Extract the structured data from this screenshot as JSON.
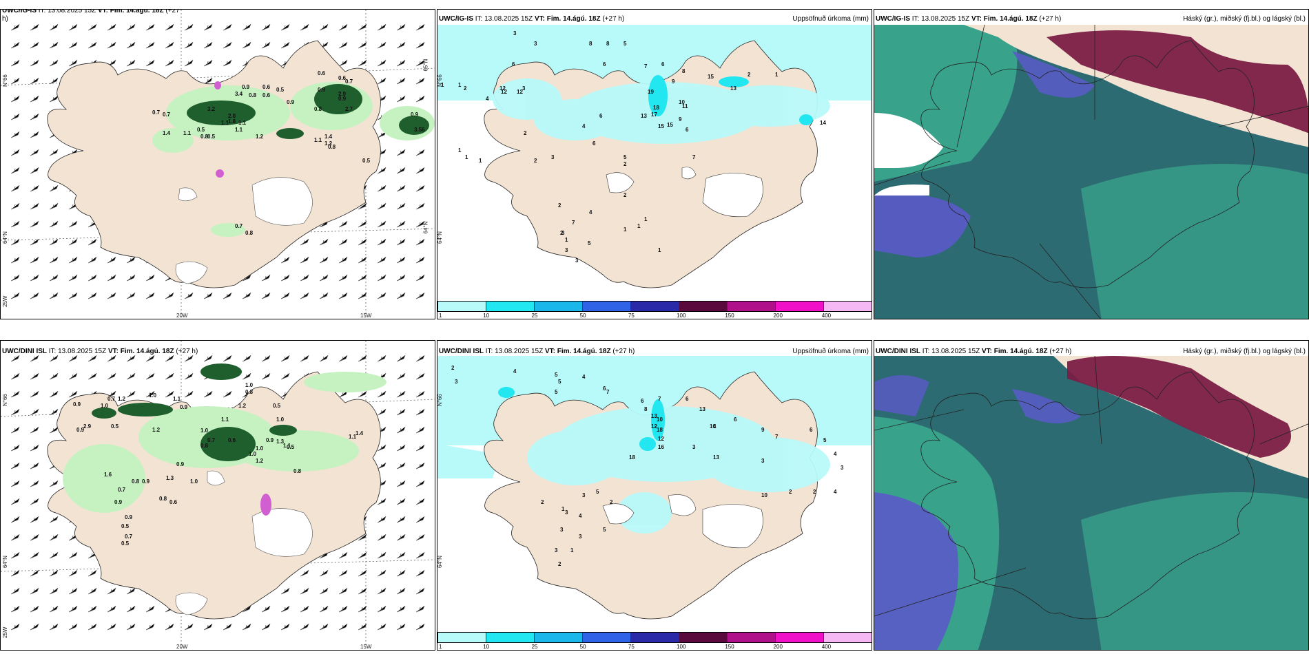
{
  "colors": {
    "land": "#f2e3d3",
    "cyan_light": "#b8fafa",
    "cyan": "#22e6f0",
    "green_light": "#c6f2c2",
    "green_dark": "#1f5f2e",
    "cloud_high": "#7a1d45",
    "cloud_mid": "#5a5ac8",
    "cloud_low": "#2d6b72",
    "cloud_teal": "#3aa88e"
  },
  "panels": {
    "top_left": {
      "model": "UWC/IG-IS",
      "it_label": "IT: 13.08.2025 15Z",
      "vt_label": "VT: Fim. 14.ágú. 18Z",
      "lead": "(+27",
      "lead_wrap": "h)",
      "axis_lat_top": "N°66",
      "axis_lat_mid": "64°N",
      "axis_lon_left": "25W",
      "axis_lon_20": "20W",
      "axis_lon_15": "15W",
      "axis_right_65": "65°N",
      "axis_right_64": "64°N",
      "numbers": [
        "0.6",
        "0.6",
        "0.7",
        "0.9",
        "0.6",
        "0.5",
        "2.9",
        "0.7",
        "3.2",
        "0.9",
        "0.8",
        "0.6",
        "0.9",
        "2.7",
        "1.1",
        "1.1",
        "2.8",
        "0.5",
        "0.5",
        "1.4",
        "1.1",
        "0.8",
        "1.2",
        "1.4",
        "1.1",
        "0.8",
        "1.8",
        "1.1",
        "0.9",
        "0.8",
        "0.5",
        "0.9",
        "3.56",
        "3.4",
        "0.7",
        "0.8",
        "0.7",
        "1.2"
      ]
    },
    "top_mid": {
      "model": "UWC/IG-IS",
      "it_label": "IT: 13.08.2025 15Z",
      "vt_label": "VT: Fim. 14.ágú. 18Z",
      "lead": "(+27 h)",
      "title_right": "Uppsöfnuð úrkoma (mm)",
      "axis_lat_top": "N°66",
      "axis_lat_mid": "64°N",
      "numbers": [
        "3",
        "3",
        "6",
        "8",
        "8",
        "5",
        "6",
        "7",
        "6",
        "15",
        "8",
        "9",
        "10",
        "12",
        "12",
        "12",
        "3",
        "1",
        "1",
        "2",
        "4",
        "19",
        "18",
        "17",
        "13",
        "15",
        "15",
        "6",
        "11",
        "13",
        "9",
        "2",
        "1",
        "14",
        "7",
        "4",
        "5",
        "6",
        "4",
        "2",
        "3",
        "2",
        "1",
        "1",
        "1",
        "2",
        "2",
        "1",
        "3",
        "3",
        "2",
        "7",
        "1",
        "3",
        "1",
        "1",
        "1",
        "6",
        "5",
        "2"
      ]
    },
    "top_right": {
      "model": "UWC/IG-IS",
      "it_label": "IT: 13.08.2025 15Z",
      "vt_label": "VT: Fim. 14.ágú. 18Z",
      "lead": "(+27 h)",
      "title_right": "Háský (gr.), miðský (fj.bl.) og lágský (bl.)"
    },
    "bottom_left": {
      "model": "UWC/DINI ISL",
      "it_label": "IT: 13.08.2025 15Z",
      "vt_label": "VT: Fim. 14.ágú. 18Z",
      "lead": "(+27 h)",
      "axis_lat_top": "N°66",
      "axis_lat_mid": "64°N",
      "axis_lon_left": "25W",
      "axis_lon_20": "20W",
      "axis_lon_15": "15W",
      "numbers": [
        "1.0",
        "0.8",
        "1.0",
        "0.9",
        "0.7",
        "1.2",
        "1.0",
        "1.1",
        "0.9",
        "1.2",
        "1.1",
        "0.5",
        "1.0",
        "0.9",
        "2.9",
        "0.5",
        "1.2",
        "1.0",
        "0.7",
        "0.6",
        "0.8",
        "1.0",
        "0.9",
        "1.3",
        "1.1",
        "1.2",
        "1.0",
        "0.8",
        "0.9",
        "0.5",
        "1.1",
        "1.4",
        "0.7",
        "0.9",
        "0.8",
        "0.8",
        "0.6",
        "0.9",
        "0.5",
        "0.7",
        "0.5",
        "0.9",
        "1.3",
        "1.0",
        "1.6"
      ]
    },
    "bottom_mid": {
      "model": "UWC/DINI ISL",
      "it_label": "IT: 13.08.2025 15Z",
      "vt_label": "VT: Fim. 14.ágú. 18Z",
      "lead": "(+27 h)",
      "title_right": "Uppsöfnuð úrkoma (mm)",
      "axis_lat_top": "N°66",
      "axis_lat_mid": "64°N",
      "numbers": [
        "2",
        "3",
        "4",
        "5",
        "5",
        "4",
        "5",
        "6",
        "7",
        "8",
        "7",
        "6",
        "6",
        "13",
        "13",
        "10",
        "12",
        "18",
        "12",
        "16",
        "18",
        "13",
        "10",
        "6",
        "9",
        "7",
        "6",
        "5",
        "4",
        "3",
        "3",
        "2",
        "2",
        "4",
        "5",
        "2",
        "1",
        "3",
        "3",
        "1",
        "2",
        "3",
        "5",
        "3",
        "4",
        "2",
        "3",
        "10",
        "4",
        "3"
      ]
    },
    "bottom_right": {
      "model": "UWC/DINI ISL",
      "it_label": "IT: 13.08.2025 15Z",
      "vt_label": "VT: Fim. 14.ágú. 18Z",
      "lead": "(+27 h)",
      "title_right": "Háský (gr.), miðský (fj.bl.) og lágský (bl.)"
    }
  },
  "colorbar": {
    "colors": [
      "#b8fafa",
      "#22e6f0",
      "#1ab8ea",
      "#2f62e6",
      "#2a2aa8",
      "#5a0a3c",
      "#b0108a",
      "#f010c8",
      "#f5b8f5"
    ],
    "ticks": [
      "1",
      "10",
      "25",
      "50",
      "75",
      "100",
      "150",
      "200",
      "400"
    ]
  }
}
